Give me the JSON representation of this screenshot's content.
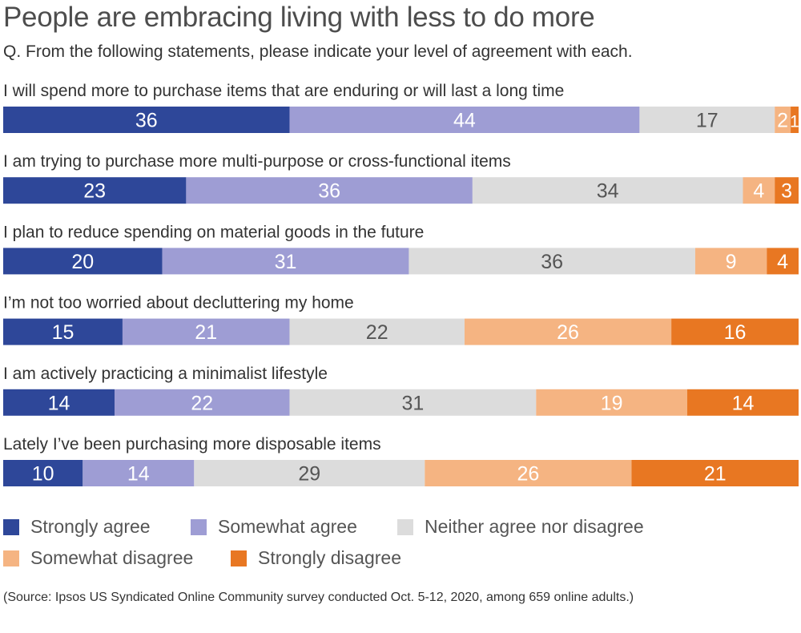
{
  "header": {
    "title": "People are embracing living with less to do more",
    "subtitle": "Q. From the following statements, please indicate your level of agreement with each."
  },
  "source": "(Source: Ipsos US Syndicated Online Community survey conducted Oct. 5-12, 2020, among 659 online adults.)",
  "colors": {
    "strongly_agree": "#2e4799",
    "somewhat_agree": "#9e9dd4",
    "neither": "#dcdcdc",
    "somewhat_disagree": "#f5b482",
    "strongly_disagree": "#e87722",
    "label_light": "#ffffff",
    "label_dark": "#555555"
  },
  "chart_data": {
    "type": "bar",
    "orientation": "horizontal",
    "stacked": true,
    "title": "People are embracing living with less to do more",
    "subtitle": "Q. From the following statements, please indicate your level of agreement with each.",
    "xlabel": "",
    "ylabel": "",
    "categories": [
      "I will spend more to purchase items that are enduring or will last a long time",
      "I am trying to purchase more multi-purpose or cross-functional items",
      "I plan to reduce spending on material goods in the future",
      "I’m not too worried about decluttering my home",
      "I am actively practicing a minimalist lifestyle",
      "Lately I’ve been purchasing more disposable items"
    ],
    "series": [
      {
        "name": "Strongly agree",
        "key": "strongly_agree",
        "values": [
          36,
          23,
          20,
          15,
          14,
          10
        ]
      },
      {
        "name": "Somewhat agree",
        "key": "somewhat_agree",
        "values": [
          44,
          36,
          31,
          21,
          22,
          14
        ]
      },
      {
        "name": "Neither agree nor disagree",
        "key": "neither",
        "values": [
          17,
          34,
          36,
          22,
          31,
          29
        ]
      },
      {
        "name": "Somewhat disagree",
        "key": "somewhat_disagree",
        "values": [
          2,
          4,
          9,
          26,
          19,
          26
        ]
      },
      {
        "name": "Strongly disagree",
        "key": "strongly_disagree",
        "values": [
          1,
          3,
          4,
          16,
          14,
          21
        ]
      }
    ],
    "legend_position": "bottom"
  }
}
